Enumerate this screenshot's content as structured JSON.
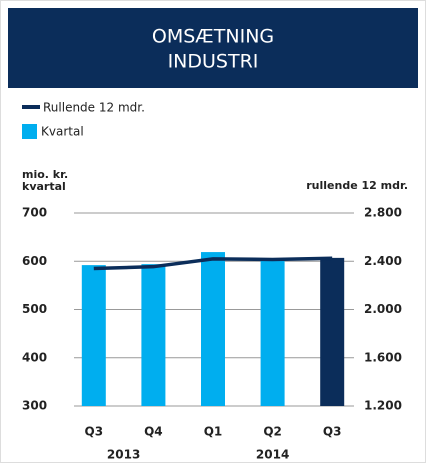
{
  "chart_data": {
    "type": "bar_line",
    "title_lines": [
      "OMSÆTNING",
      "INDUSTRI"
    ],
    "y_label_lines": [
      "mio. kr.",
      "kvartal"
    ],
    "y2_label": "rullende 12 mdr.",
    "categories": [
      "Q3",
      "Q4",
      "Q1",
      "Q2",
      "Q3"
    ],
    "year_labels": [
      "2013",
      "2014"
    ],
    "ylim": [
      300,
      700
    ],
    "yticks": [
      300,
      400,
      500,
      600,
      700
    ],
    "y2lim": [
      1200,
      2800
    ],
    "y2ticks": [
      {
        "value": 1200,
        "label": "1.200"
      },
      {
        "value": 1600,
        "label": "1.600"
      },
      {
        "value": 2000,
        "label": "2.000"
      },
      {
        "value": 2400,
        "label": "2.400"
      },
      {
        "value": 2800,
        "label": "2.800"
      }
    ],
    "grid": true,
    "series": [
      {
        "name": "Rullende 12 mdr.",
        "type": "line",
        "axis": "y2",
        "color": "#0b2d5a",
        "values": [
          2340,
          2355,
          2420,
          2415,
          2425
        ]
      },
      {
        "name": "Kvartal",
        "type": "bar",
        "color": "#00aeef",
        "colors": [
          "#00aeef",
          "#00aeef",
          "#00aeef",
          "#00aeef",
          "#0b2d5a"
        ],
        "values": [
          592,
          594,
          619,
          605,
          607
        ]
      }
    ]
  }
}
